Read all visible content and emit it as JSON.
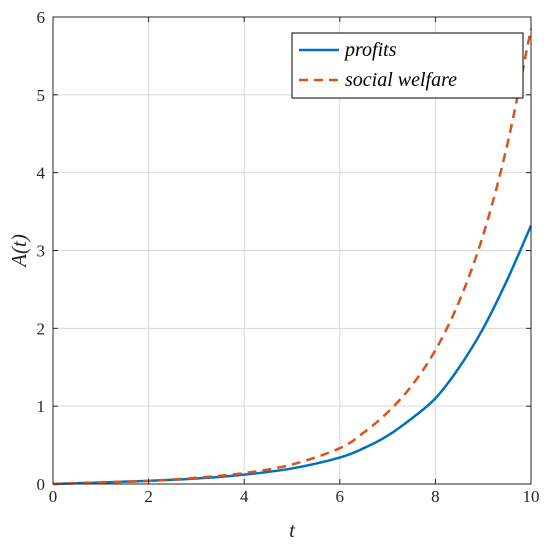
{
  "chart_data": {
    "type": "line",
    "xlabel": "t",
    "ylabel": "A(t)",
    "xlim": [
      0,
      10
    ],
    "ylim": [
      0,
      6
    ],
    "xticks": [
      0,
      2,
      4,
      6,
      8,
      10
    ],
    "yticks": [
      0,
      1,
      2,
      3,
      4,
      5,
      6
    ],
    "grid": true,
    "legend_position": "top-right",
    "x": [
      0,
      1,
      2,
      3,
      4,
      5,
      6,
      6.5,
      7,
      7.5,
      8,
      8.5,
      9,
      9.5,
      10
    ],
    "series": [
      {
        "name": "profits",
        "color": "#0072BD",
        "style": "solid",
        "values": [
          0.0,
          0.02,
          0.04,
          0.07,
          0.12,
          0.2,
          0.34,
          0.46,
          0.62,
          0.84,
          1.1,
          1.5,
          2.0,
          2.62,
          3.32
        ]
      },
      {
        "name": "social welfare",
        "color": "#D95319",
        "style": "dashed",
        "values": [
          0.0,
          0.02,
          0.04,
          0.08,
          0.14,
          0.25,
          0.46,
          0.66,
          0.92,
          1.26,
          1.72,
          2.35,
          3.2,
          4.35,
          5.85
        ]
      }
    ]
  }
}
